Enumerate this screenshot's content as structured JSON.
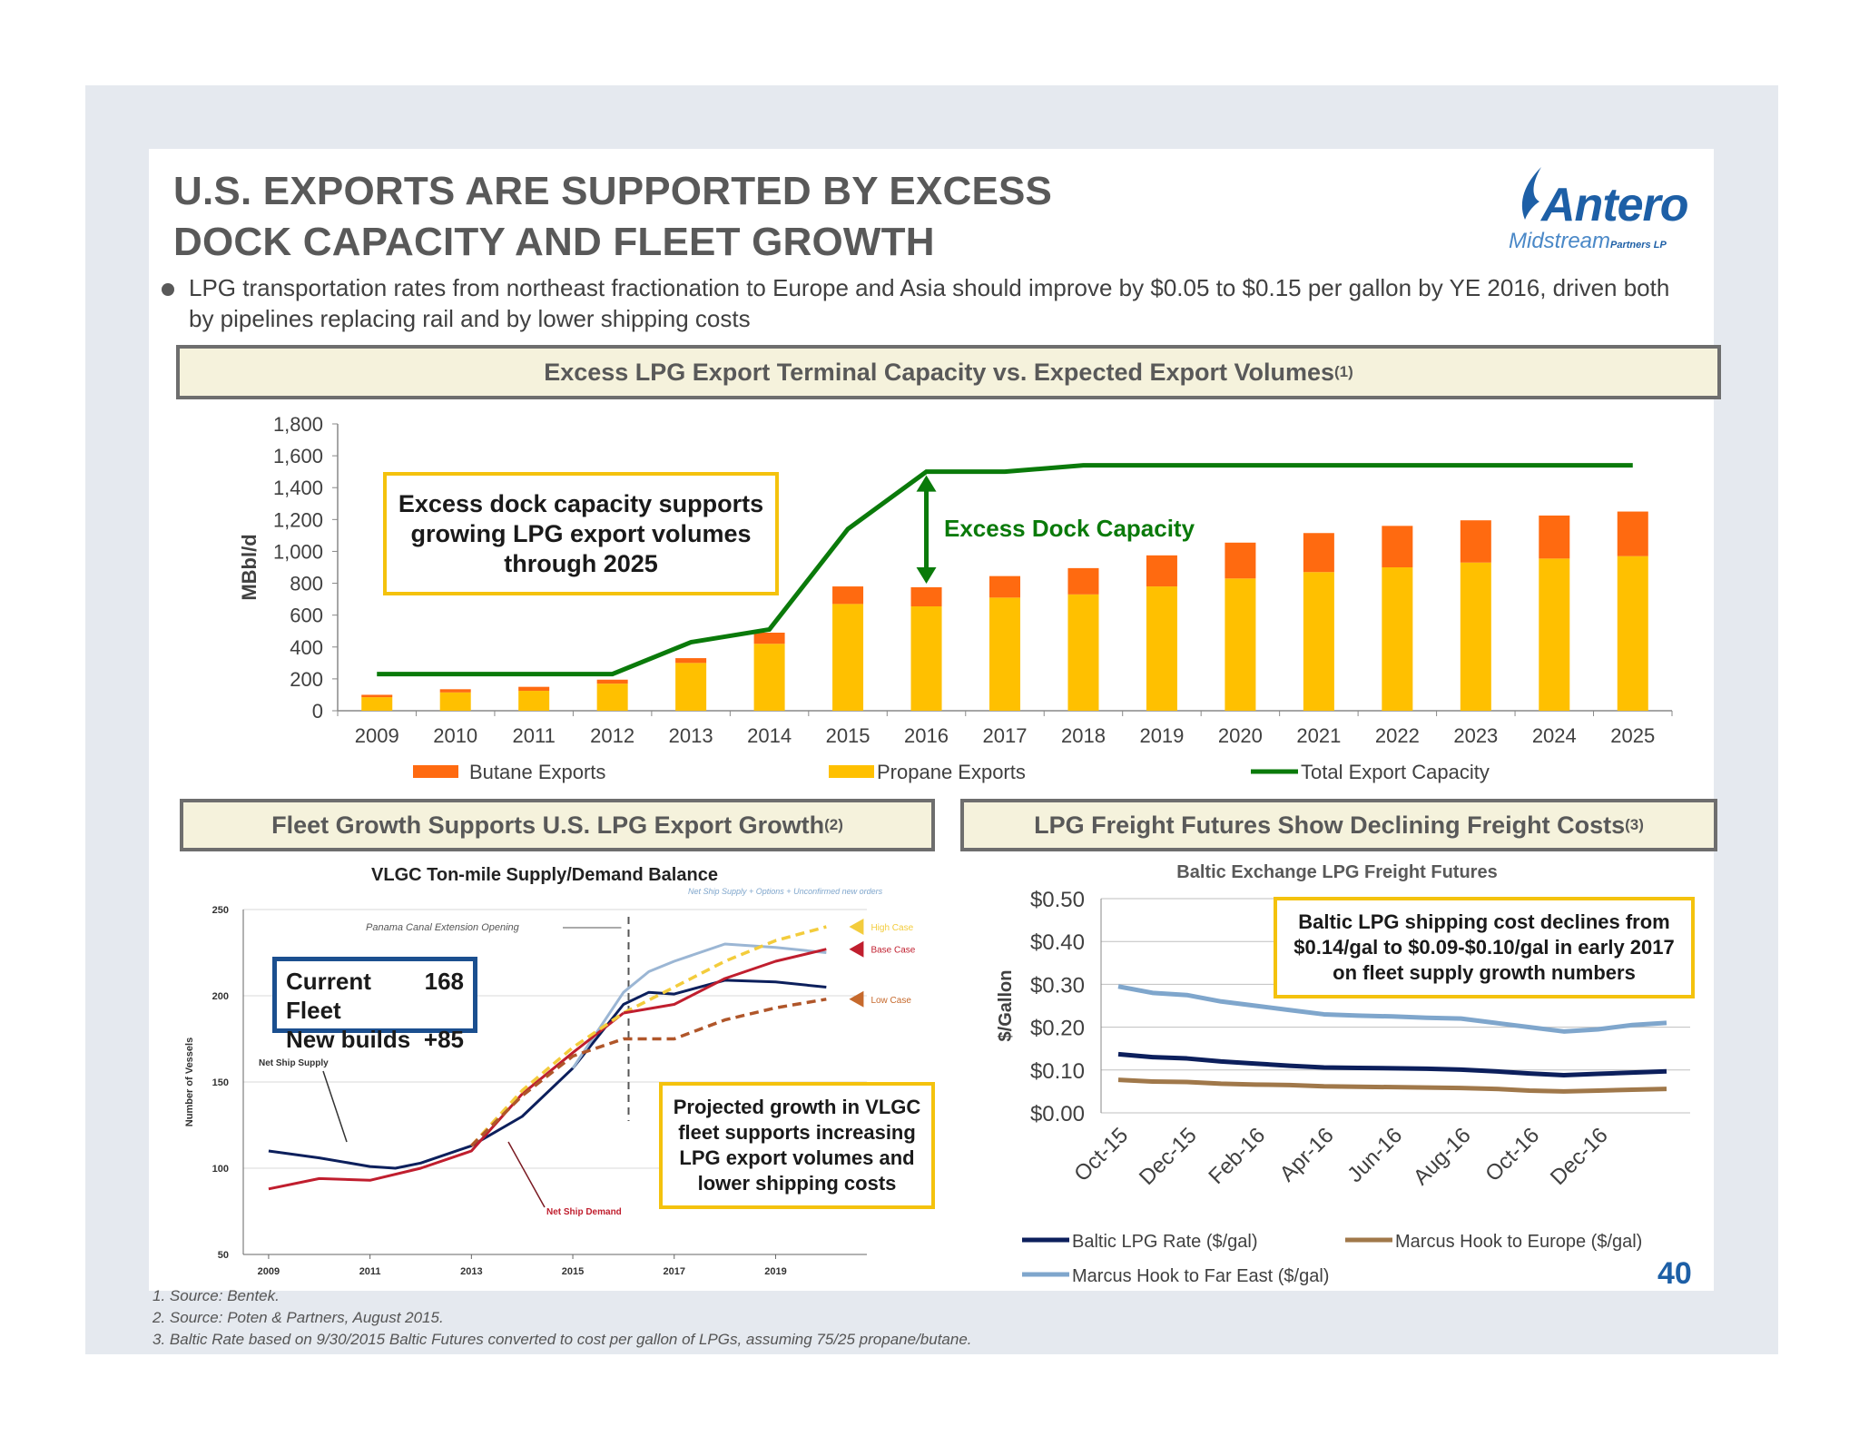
{
  "title_line1": "U.S. EXPORTS ARE SUPPORTED BY EXCESS",
  "title_line2": "DOCK CAPACITY AND FLEET GROWTH",
  "logo": {
    "main": "Antero",
    "sub": "Midstream",
    "sub2": "Partners LP"
  },
  "bullet": "LPG transportation rates from northeast fractionation to Europe and Asia should improve by $0.05 to $0.15 per gallon by YE 2016, driven both by pipelines replacing rail and by lower shipping costs",
  "top_header": {
    "text": "Excess LPG Export Terminal Capacity vs. Expected Export Volumes",
    "sup": "(1)"
  },
  "left_header": {
    "text": "Fleet Growth Supports U.S. LPG Export Growth",
    "sup": "(2)"
  },
  "right_header": {
    "text": "LPG Freight Futures Show Declining Freight Costs",
    "sup": "(3)"
  },
  "callout_top": "Excess dock capacity supports growing LPG export volumes through 2025",
  "excess_dock_label": "Excess Dock Capacity",
  "fleet_box": {
    "row1_label": "Current Fleet",
    "row1_value": "168",
    "row2_label": "New builds",
    "row2_value": "+85"
  },
  "callout_fleet": "Projected growth in VLGC fleet supports increasing LPG export volumes and lower shipping costs",
  "callout_freight": "Baltic LPG shipping cost declines from $0.14/gal to $0.09-$0.10/gal in early 2017 on fleet supply growth numbers",
  "page_number": "40",
  "footnotes": [
    "1.  Source: Bentek.",
    "2.  Source: Poten & Partners, August 2015.",
    "3.  Baltic Rate based on 9/30/2015 Baltic Futures converted to cost per gallon of LPGs, assuming 75/25 propane/butane."
  ],
  "colors": {
    "butane": "#ff6a10",
    "propane": "#ffc000",
    "capacity": "#0a7a0a",
    "baltic": "#0c1f5c",
    "europe": "#a0784a",
    "fareast": "#7fa6cc",
    "navy": "#1b4f8f"
  },
  "chart_data": [
    {
      "type": "bar",
      "stacked": true,
      "categories": [
        "2009",
        "2010",
        "2011",
        "2012",
        "2013",
        "2014",
        "2015",
        "2016",
        "2017",
        "2018",
        "2019",
        "2020",
        "2021",
        "2022",
        "2023",
        "2024",
        "2025"
      ],
      "series": [
        {
          "name": "Propane Exports",
          "values": [
            85,
            115,
            125,
            170,
            300,
            420,
            670,
            655,
            710,
            730,
            780,
            830,
            870,
            900,
            930,
            955,
            970
          ]
        },
        {
          "name": "Butane Exports",
          "values": [
            15,
            20,
            25,
            25,
            30,
            70,
            110,
            120,
            135,
            165,
            195,
            225,
            245,
            260,
            265,
            270,
            280
          ]
        },
        {
          "name": "Total Export Capacity",
          "type": "line",
          "values": [
            230,
            230,
            230,
            230,
            430,
            510,
            1140,
            1500,
            1500,
            1540,
            1540,
            1540,
            1540,
            1540,
            1540,
            1540,
            1540
          ]
        }
      ],
      "ylabel": "MBbl/d",
      "ylim": [
        0,
        1800
      ],
      "yticks": [
        "0",
        "200",
        "400",
        "600",
        "800",
        "1,000",
        "1,200",
        "1,400",
        "1,600",
        "1,800"
      ],
      "legend": [
        "Butane Exports",
        "Propane Exports",
        "Total Export Capacity"
      ],
      "legend_position": "bottom"
    },
    {
      "type": "line",
      "title": "VLGC Ton-mile Supply/Demand Balance",
      "ylabel": "Number of Vessels",
      "ylim": [
        50,
        250
      ],
      "yticks": [
        "50",
        "100",
        "150",
        "200",
        "250"
      ],
      "xticks": [
        "2009",
        "2011",
        "2013",
        "2015",
        "2017",
        "2019"
      ],
      "annotations": [
        "Panama Canal Extension Opening",
        "Net Ship Supply + Options + Unconfirmed new orders",
        "High Case",
        "Base Case",
        "Low Case",
        "Net Ship Supply",
        "Net Ship Demand"
      ],
      "series": [
        {
          "name": "Net Ship Supply",
          "x": [
            2009,
            2010,
            2011,
            2011.5,
            2012,
            2013,
            2014,
            2015,
            2016,
            2016.5,
            2017,
            2018,
            2019,
            2020
          ],
          "values": [
            110,
            106,
            101,
            100,
            103,
            113,
            130,
            158,
            195,
            202,
            201,
            209,
            208,
            205
          ]
        },
        {
          "name": "Net Ship Supply + Options + Unconfirmed new orders",
          "x": [
            2015,
            2016,
            2016.5,
            2017,
            2018,
            2019,
            2020
          ],
          "values": [
            158,
            202,
            214,
            220,
            230,
            228,
            225
          ]
        },
        {
          "name": "Net Ship Demand",
          "x": [
            2009,
            2010,
            2011,
            2012,
            2013,
            2014,
            2015,
            2016
          ],
          "values": [
            88,
            94,
            93,
            100,
            110,
            143,
            167,
            190
          ]
        },
        {
          "name": "High Case",
          "x": [
            2013,
            2014,
            2015,
            2016,
            2017,
            2018,
            2019,
            2020
          ],
          "values": [
            113,
            145,
            170,
            190,
            205,
            220,
            232,
            240
          ]
        },
        {
          "name": "Base Case",
          "x": [
            2016,
            2017,
            2018,
            2019,
            2020
          ],
          "values": [
            190,
            195,
            210,
            220,
            227
          ]
        },
        {
          "name": "Low Case",
          "x": [
            2013,
            2014,
            2015,
            2016,
            2017,
            2018,
            2019,
            2020
          ],
          "values": [
            113,
            142,
            165,
            175,
            175,
            186,
            193,
            198
          ]
        }
      ]
    },
    {
      "type": "line",
      "title": "Baltic Exchange LPG Freight Futures",
      "ylabel": "$/Gallon",
      "ylim": [
        0,
        0.5
      ],
      "yticks": [
        "$0.00",
        "$0.10",
        "$0.20",
        "$0.30",
        "$0.40",
        "$0.50"
      ],
      "categories": [
        "Oct-15",
        "Nov-15",
        "Dec-15",
        "Jan-16",
        "Feb-16",
        "Mar-16",
        "Apr-16",
        "May-16",
        "Jun-16",
        "Jul-16",
        "Aug-16",
        "Sep-16",
        "Oct-16",
        "Nov-16",
        "Dec-16",
        "Jan-17",
        "Feb-17"
      ],
      "xticks": [
        "Oct-15",
        "Dec-15",
        "Feb-16",
        "Apr-16",
        "Jun-16",
        "Aug-16",
        "Oct-16",
        "Dec-16"
      ],
      "series": [
        {
          "name": "Baltic LPG Rate ($/gal)",
          "values": [
            0.137,
            0.13,
            0.127,
            0.12,
            0.115,
            0.11,
            0.106,
            0.105,
            0.104,
            0.103,
            0.101,
            0.097,
            0.092,
            0.088,
            0.091,
            0.094,
            0.097
          ]
        },
        {
          "name": "Marcus Hook to Europe ($/gal)",
          "values": [
            0.077,
            0.073,
            0.072,
            0.068,
            0.066,
            0.065,
            0.062,
            0.061,
            0.06,
            0.059,
            0.058,
            0.056,
            0.052,
            0.05,
            0.052,
            0.054,
            0.056
          ]
        },
        {
          "name": "Marcus Hook to Far East ($/gal)",
          "values": [
            0.295,
            0.28,
            0.275,
            0.26,
            0.25,
            0.24,
            0.23,
            0.227,
            0.225,
            0.222,
            0.22,
            0.21,
            0.2,
            0.19,
            0.195,
            0.205,
            0.21
          ]
        }
      ],
      "legend": [
        "Baltic LPG Rate ($/gal)",
        "Marcus Hook to Europe ($/gal)",
        "Marcus Hook to Far East ($/gal)"
      ],
      "legend_position": "bottom"
    }
  ]
}
